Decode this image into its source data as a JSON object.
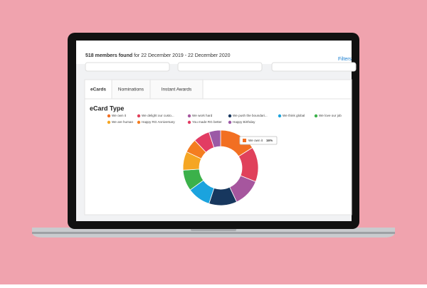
{
  "header": {
    "count": "518 members found",
    "date_range": "for 22 December 2019 - 22 December 2020",
    "filters": "Filters"
  },
  "tabs": [
    "eCards",
    "Nominations",
    "Instant Awards"
  ],
  "chart_data": {
    "type": "donut",
    "title": "eCard Type",
    "categories": [
      "We own it",
      "We delight our custo...",
      "We work hard",
      "We push the boundari...",
      "We think global",
      "We love our job",
      "We are human",
      "Happy RG Anniversary",
      "You made RG better",
      "Happy Birthday"
    ],
    "values": [
      16,
      15,
      12,
      12,
      10,
      9,
      8,
      6,
      7,
      5
    ],
    "colors": [
      "#f26f22",
      "#e0415b",
      "#a6569e",
      "#17375e",
      "#1ba3de",
      "#3bb14a",
      "#f5a623",
      "#f47d20",
      "#e23c63",
      "#9b59a6"
    ],
    "tooltip": {
      "label": "16%"
    }
  }
}
